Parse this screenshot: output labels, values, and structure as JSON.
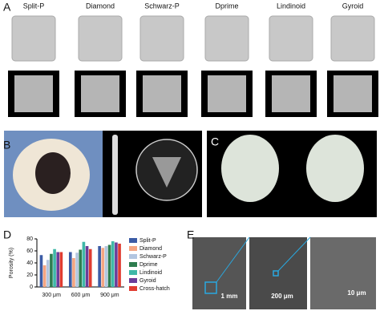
{
  "panel_labels": [
    "A",
    "B",
    "C",
    "D",
    "E"
  ],
  "lattices": [
    "Split-P",
    "Diamond",
    "Schwarz-P",
    "Dprime",
    "Lindinoid",
    "Gyroid"
  ],
  "scale_bars": [
    "1 mm",
    "200 μm",
    "10 μm"
  ],
  "chart_data": {
    "type": "bar",
    "ylabel": "Porosity (%)",
    "categories": [
      "300 μm",
      "600 μm",
      "900 μm"
    ],
    "series": [
      {
        "name": "Split-P",
        "color": "#3b5ba5",
        "values": [
          53,
          58,
          68
        ]
      },
      {
        "name": "Diamond",
        "color": "#f4a582",
        "values": [
          36,
          48,
          65
        ]
      },
      {
        "name": "Schwarz-P",
        "color": "#b3c6e0",
        "values": [
          45,
          57,
          68
        ]
      },
      {
        "name": "Dprime",
        "color": "#2e7d4f",
        "values": [
          55,
          62,
          70
        ]
      },
      {
        "name": "Lindinoid",
        "color": "#3fb8a8",
        "values": [
          63,
          75,
          76
        ]
      },
      {
        "name": "Gyroid",
        "color": "#6a3d9a",
        "values": [
          58,
          68,
          74
        ]
      },
      {
        "name": "Cross-hatch",
        "color": "#e03c31",
        "values": [
          58,
          63,
          72
        ]
      }
    ],
    "ylim": [
      0,
      80
    ],
    "yticks": [
      0,
      20,
      40,
      60,
      80
    ]
  }
}
